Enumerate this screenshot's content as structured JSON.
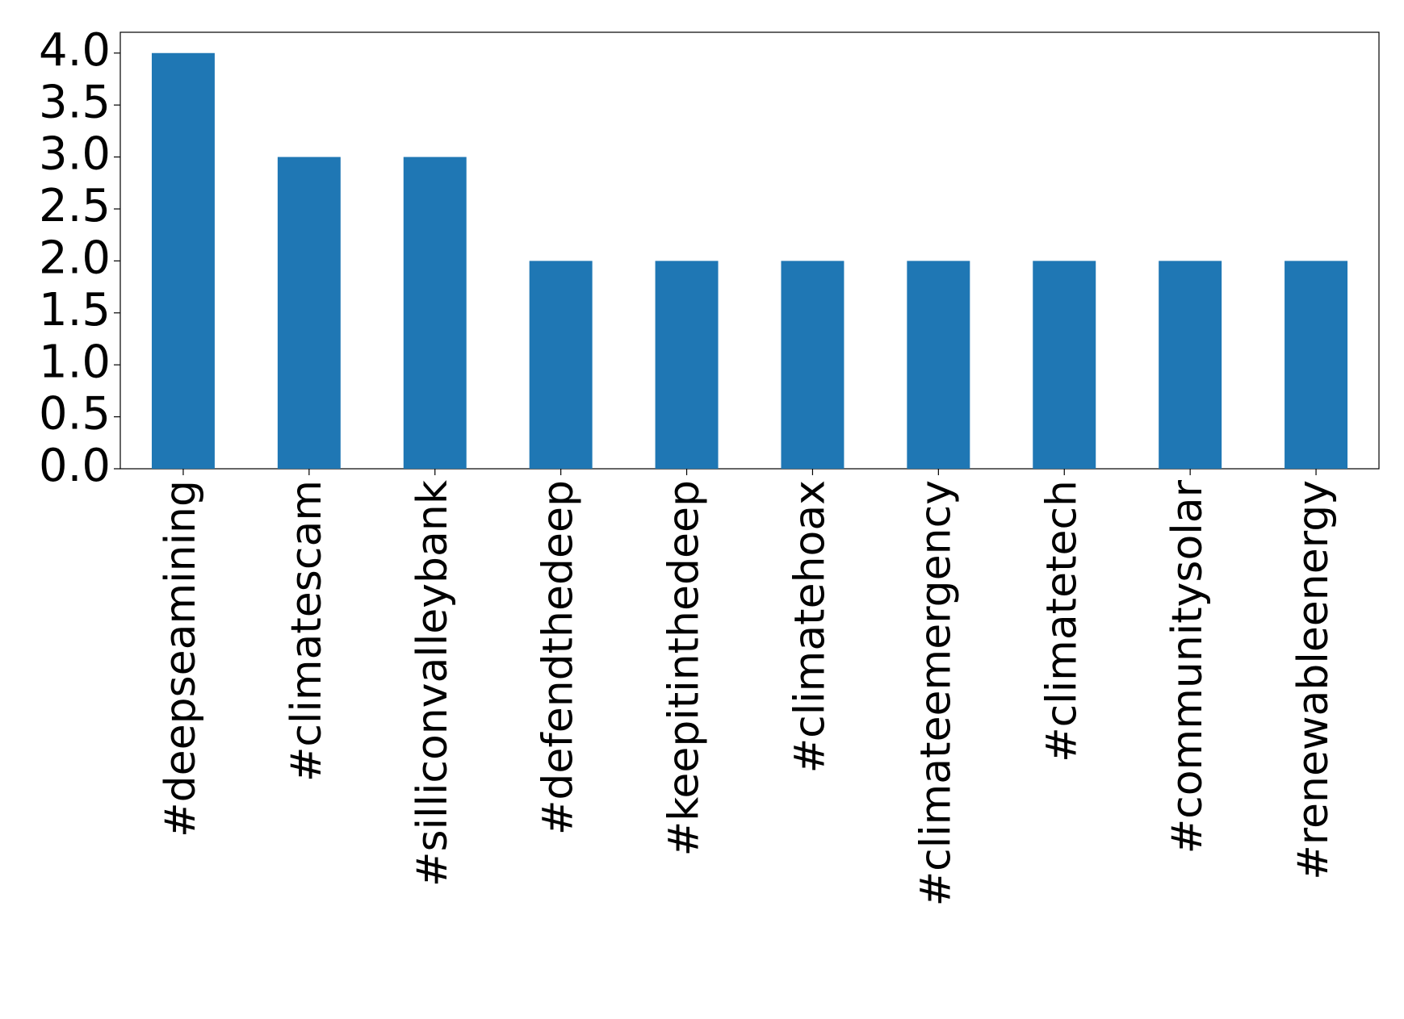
{
  "chart_data": {
    "type": "bar",
    "categories": [
      "#deepseamining",
      "#climatescam",
      "#silliconvalleybank",
      "#defendthedeep",
      "#keepitinthedeep",
      "#climatehoax",
      "#climateemergency",
      "#climatetech",
      "#communitysolar",
      "#renewableenergy"
    ],
    "values": [
      4,
      3,
      3,
      2,
      2,
      2,
      2,
      2,
      2,
      2
    ],
    "color": "#1f77b4",
    "ylim": [
      0,
      4.2
    ],
    "yticks": [
      {
        "value": 0,
        "label": "0.0"
      },
      0.5,
      {
        "value": 1,
        "label": "1.0"
      },
      1.5,
      {
        "value": 2,
        "label": "2.0"
      },
      2.5,
      {
        "value": 3,
        "label": "3.0"
      },
      3.5,
      {
        "value": 4,
        "label": "4.0"
      }
    ],
    "grid": false
  }
}
